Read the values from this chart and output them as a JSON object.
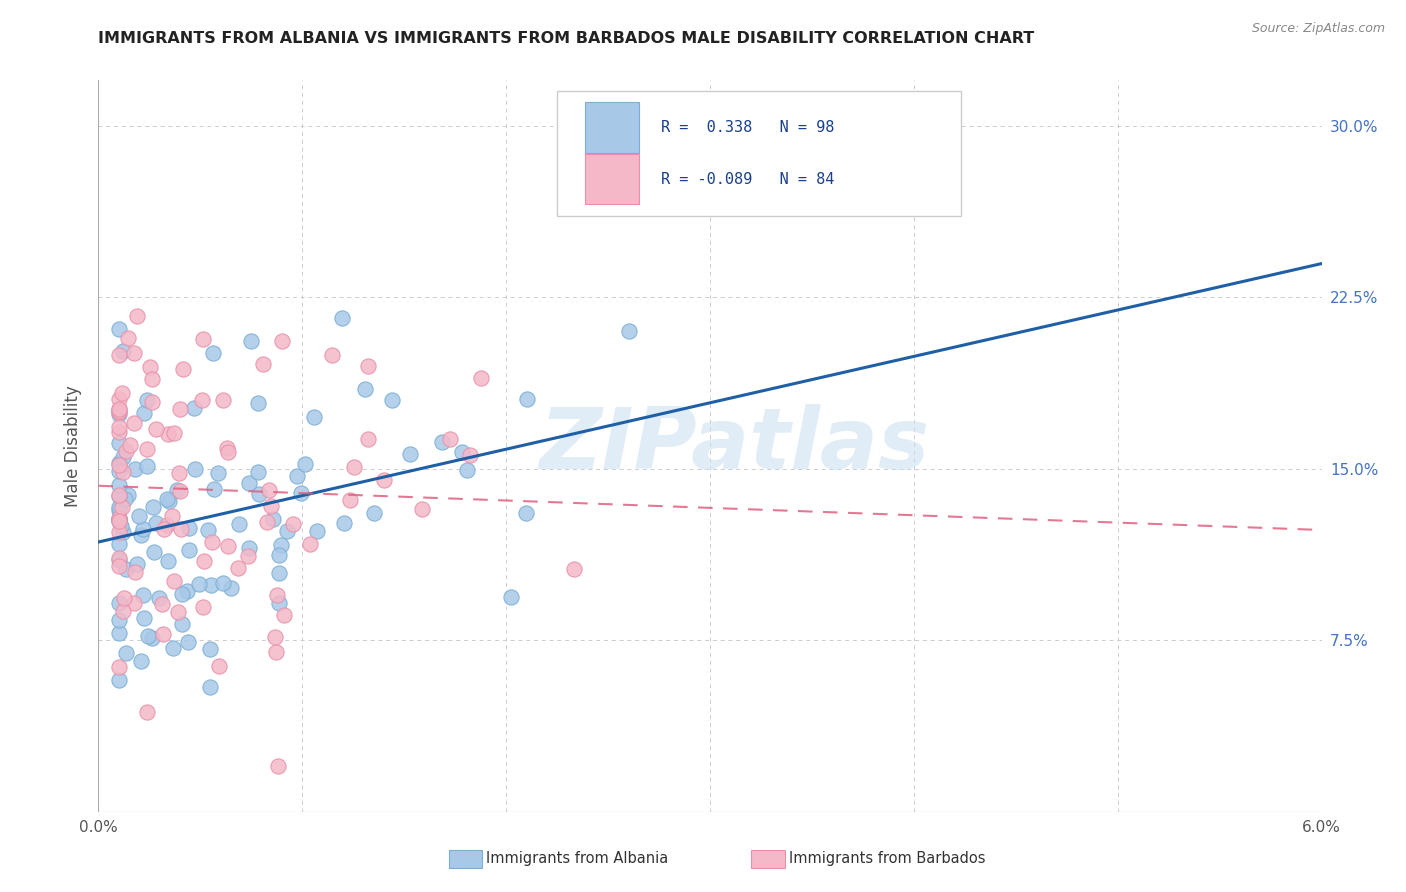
{
  "title": "IMMIGRANTS FROM ALBANIA VS IMMIGRANTS FROM BARBADOS MALE DISABILITY CORRELATION CHART",
  "source": "Source: ZipAtlas.com",
  "ylabel": "Male Disability",
  "xlim": [
    0.0,
    0.06
  ],
  "ylim": [
    0.0,
    0.32
  ],
  "albania_color": "#a8c8e8",
  "albania_edge_color": "#7aaed4",
  "barbados_color": "#f4b8c8",
  "barbados_edge_color": "#e890a8",
  "albania_line_color": "#1f5fa6",
  "barbados_line_color": "#e06080",
  "watermark": "ZIPatlas",
  "watermark_color": "#c8ddf0",
  "grid_color": "#cccccc",
  "bg_color": "#ffffff",
  "title_color": "#222222",
  "axis_label_color": "#555555",
  "tick_color_right": "#4472c4",
  "tick_color_bottom": "#555555",
  "legend_text_color": "#1a3f8c",
  "legend_border_color": "#cccccc",
  "albania_R_label": "R =  0.338",
  "albania_N_label": "N = 98",
  "barbados_R_label": "R = -0.089",
  "barbados_N_label": "N = 84"
}
